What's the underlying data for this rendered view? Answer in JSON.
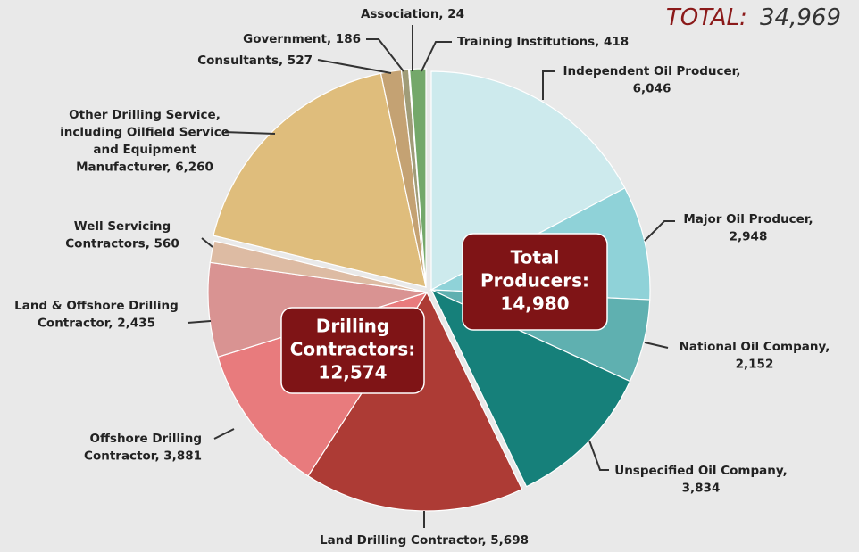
{
  "chart_data": {
    "type": "pie",
    "total": {
      "label": "TOTAL:",
      "value": 34969,
      "value_label": "34,969"
    },
    "values": [
      6046,
      2948,
      2152,
      3834,
      5698,
      3881,
      2435,
      560,
      6260,
      527,
      186,
      24,
      418
    ],
    "value_labels": [
      [
        "Independent Oil Producer,",
        "6,046"
      ],
      [
        "Major Oil Producer,",
        "2,948"
      ],
      [
        "National Oil Company,",
        "2,152"
      ],
      [
        "Unspecified Oil Company,",
        "3,834"
      ],
      [
        "Land Drilling Contractor, 5,698"
      ],
      [
        "Offshore Drilling",
        "Contractor, 3,881"
      ],
      [
        "Land & Offshore Drilling",
        "Contractor, 2,435"
      ],
      [
        "Well Servicing",
        "Contractors, 560"
      ],
      [
        "Other Drilling Service,",
        "including Oilfield Service",
        "and Equipment",
        "Manufacturer, 6,260"
      ],
      [
        "Consultants, 527"
      ],
      [
        "Government, 186"
      ],
      [
        "Association, 24"
      ],
      [
        "Training Institutions, 418"
      ]
    ],
    "colors": [
      "#cdeaed",
      "#8fd2d8",
      "#5fb0b0",
      "#16807a",
      "#ad3b35",
      "#e87b7d",
      "#d99392",
      "#ddbba3",
      "#dfbd7c",
      "#c4a273",
      "#a09c78",
      "#6f9a5a",
      "#74a86a"
    ],
    "groups": [
      {
        "label": [
          "Total",
          "Producers:"
        ],
        "value": 14980,
        "value_label": "14,980",
        "color": "#7f1416"
      },
      {
        "label": [
          "Drilling",
          "Contractors:"
        ],
        "value": 12574,
        "value_label": "12,574",
        "color": "#7f1416"
      }
    ]
  }
}
